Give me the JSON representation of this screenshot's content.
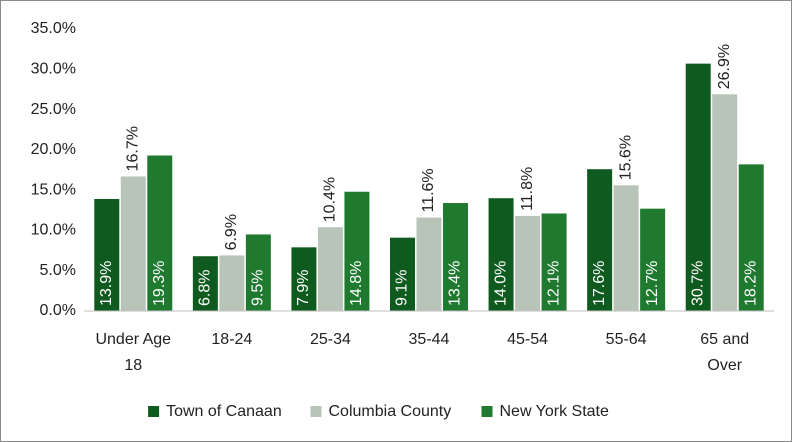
{
  "chart_data": {
    "type": "bar",
    "categories": [
      "Under Age 18",
      "18-24",
      "25-34",
      "35-44",
      "45-54",
      "55-64",
      "65 and Over"
    ],
    "series": [
      {
        "name": "Town of Canaan",
        "color": "#0f5a1f",
        "label_position": "inside",
        "values": [
          13.9,
          6.8,
          7.9,
          9.1,
          14.0,
          17.6,
          30.7
        ],
        "value_labels": [
          "13.9%",
          "6.8%",
          "7.9%",
          "9.1%",
          "14.0%",
          "17.6%",
          "30.7%"
        ]
      },
      {
        "name": "Columbia County",
        "color": "#b8c4b8",
        "label_position": "outside",
        "values": [
          16.7,
          6.9,
          10.4,
          11.6,
          11.8,
          15.6,
          26.9
        ],
        "value_labels": [
          "16.7%",
          "6.9%",
          "10.4%",
          "11.6%",
          "11.8%",
          "15.6%",
          "26.9%"
        ]
      },
      {
        "name": "New York State",
        "color": "#1f7a30",
        "label_position": "inside",
        "values": [
          19.3,
          9.5,
          14.8,
          13.4,
          12.1,
          12.7,
          18.2
        ],
        "value_labels": [
          "19.3%",
          "9.5%",
          "14.8%",
          "13.4%",
          "12.1%",
          "12.7%",
          "18.2%"
        ]
      }
    ],
    "ylim": [
      0,
      35
    ],
    "yticks": [
      {
        "value": 0,
        "label": "0.0%"
      },
      {
        "value": 5,
        "label": "5.0%"
      },
      {
        "value": 10,
        "label": "10.0%"
      },
      {
        "value": 15,
        "label": "15.0%"
      },
      {
        "value": 20,
        "label": "20.0%"
      },
      {
        "value": 25,
        "label": "25.0%"
      },
      {
        "value": 30,
        "label": "30.0%"
      },
      {
        "value": 35,
        "label": "35.0%"
      }
    ],
    "grid": false,
    "legend": "bottom"
  }
}
